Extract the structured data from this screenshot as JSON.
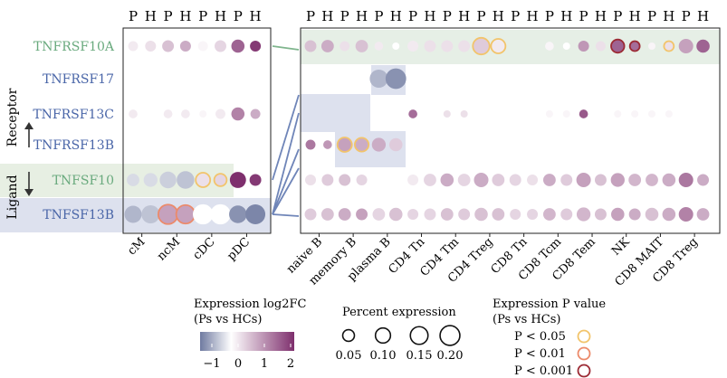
{
  "chart_data": {
    "type": "dot-plot",
    "column_pair_labels": [
      "P",
      "H"
    ],
    "genes": [
      "TNFRSF10A",
      "TNFRSF17",
      "TNFRSF13C",
      "TNFRSF13B",
      "TNFSF10",
      "TNFSF13B"
    ],
    "gene_colors": [
      "#6aaa7e",
      "#4a66a8",
      "#4a66a8",
      "#4a66a8",
      "#6aaa7e",
      "#4a66a8"
    ],
    "side_labels": {
      "receptor": "Receptor",
      "ligand": "Ligand"
    },
    "myeloid": {
      "cell_types": [
        "cM",
        "ncM",
        "cDC",
        "pDC"
      ],
      "values": [
        [
          [
            0.2,
            0.03,
            "none"
          ],
          [
            0.3,
            0.04,
            "none"
          ],
          [
            0.6,
            0.05,
            "none"
          ],
          [
            0.8,
            0.04,
            "none"
          ],
          [
            0.1,
            0.03,
            "none"
          ],
          [
            0.4,
            0.05,
            "none"
          ],
          [
            1.5,
            0.07,
            "none"
          ],
          [
            1.9,
            0.04,
            "none"
          ]
        ],
        [
          [
            0.0,
            0.01,
            "none"
          ],
          [
            0.0,
            0.01,
            "none"
          ],
          [
            0.0,
            0.01,
            "none"
          ],
          [
            0.0,
            0.01,
            "none"
          ],
          [
            0.0,
            0.01,
            "none"
          ],
          [
            0.0,
            0.01,
            "none"
          ],
          [
            0.0,
            0.01,
            "none"
          ],
          [
            0.0,
            0.01,
            "none"
          ]
        ],
        [
          [
            0.2,
            0.02,
            "none"
          ],
          [
            0.0,
            0.01,
            "none"
          ],
          [
            0.2,
            0.02,
            "none"
          ],
          [
            0.2,
            0.02,
            "none"
          ],
          [
            0.1,
            0.01,
            "none"
          ],
          [
            0.2,
            0.03,
            "none"
          ],
          [
            1.2,
            0.07,
            "none"
          ],
          [
            0.8,
            0.03,
            "none"
          ]
        ],
        [
          [
            0.0,
            0.0,
            "none"
          ],
          [
            0.0,
            0.0,
            "none"
          ],
          [
            0.0,
            0.0,
            "none"
          ],
          [
            0.0,
            0.0,
            "none"
          ],
          [
            0.0,
            0.0,
            "none"
          ],
          [
            0.0,
            0.0,
            "none"
          ],
          [
            0.0,
            0.0,
            "none"
          ],
          [
            0.0,
            0.0,
            "none"
          ]
        ],
        [
          [
            -0.3,
            0.06,
            "none"
          ],
          [
            -0.3,
            0.08,
            "none"
          ],
          [
            -0.4,
            0.13,
            "none"
          ],
          [
            -0.5,
            0.15,
            "none"
          ],
          [
            0.3,
            0.09,
            "p05"
          ],
          [
            0.4,
            0.06,
            "p05"
          ],
          [
            2.0,
            0.12,
            "none"
          ],
          [
            1.9,
            0.05,
            "none"
          ]
        ],
        [
          [
            -0.6,
            0.14,
            "none"
          ],
          [
            -0.5,
            0.16,
            "none"
          ],
          [
            0.9,
            0.19,
            "p01"
          ],
          [
            0.9,
            0.17,
            "p01"
          ],
          [
            0.0,
            0.21,
            "none"
          ],
          [
            0.0,
            0.21,
            "none"
          ],
          [
            -0.9,
            0.15,
            "none"
          ],
          [
            -1.0,
            0.2,
            "none"
          ]
        ]
      ]
    },
    "lymphoid": {
      "cell_types": [
        "naive B",
        "memory B",
        "plasma B",
        "CD4 Tn",
        "CD4 Tm",
        "CD4 Treg",
        "CD8 Tn",
        "CD8 Tcm",
        "CD8 Tem",
        "NK",
        "CD8 MAIT",
        "CD8 Treg"
      ],
      "values": [
        [
          [
            0.6,
            0.05,
            "none"
          ],
          [
            0.8,
            0.06,
            "none"
          ],
          [
            0.3,
            0.03,
            "none"
          ],
          [
            0.6,
            0.06,
            "none"
          ],
          [
            0.2,
            0.02,
            "none"
          ],
          [
            0.0,
            0.01,
            "none"
          ],
          [
            0.2,
            0.04,
            "none"
          ],
          [
            0.3,
            0.05,
            "none"
          ],
          [
            0.3,
            0.05,
            "none"
          ],
          [
            0.3,
            0.05,
            "none"
          ],
          [
            0.5,
            0.13,
            "p05"
          ],
          [
            0.2,
            0.09,
            "p05"
          ],
          [
            0.0,
            0.0,
            "none"
          ],
          [
            0.0,
            0.0,
            "none"
          ],
          [
            0.1,
            0.02,
            "none"
          ],
          [
            0.0,
            0.01,
            "none"
          ],
          [
            1.0,
            0.04,
            "none"
          ],
          [
            0.3,
            0.03,
            "none"
          ],
          [
            1.5,
            0.07,
            "p001"
          ],
          [
            1.4,
            0.03,
            "p001"
          ],
          [
            0.1,
            0.01,
            "none"
          ],
          [
            0.3,
            0.03,
            "p05"
          ],
          [
            0.9,
            0.09,
            "none"
          ],
          [
            1.5,
            0.07,
            "none"
          ]
        ],
        [
          [
            0.0,
            0.01,
            "none"
          ],
          [
            0.0,
            0.01,
            "none"
          ],
          [
            0.0,
            0.01,
            "none"
          ],
          [
            0.0,
            0.01,
            "none"
          ],
          [
            -0.6,
            0.16,
            "none"
          ],
          [
            -0.9,
            0.22,
            "none"
          ],
          [
            0.0,
            0.0,
            "none"
          ],
          [
            0.0,
            0.0,
            "none"
          ],
          [
            0.0,
            0.0,
            "none"
          ],
          [
            0.0,
            0.0,
            "none"
          ],
          [
            0.0,
            0.0,
            "none"
          ],
          [
            0.0,
            0.0,
            "none"
          ],
          [
            0.0,
            0.0,
            "none"
          ],
          [
            0.0,
            0.0,
            "none"
          ],
          [
            0.0,
            0.0,
            "none"
          ],
          [
            0.0,
            0.0,
            "none"
          ],
          [
            0.0,
            0.0,
            "none"
          ],
          [
            0.0,
            0.0,
            "none"
          ],
          [
            0.0,
            0.0,
            "none"
          ],
          [
            0.0,
            0.0,
            "none"
          ],
          [
            0.0,
            0.0,
            "none"
          ],
          [
            0.0,
            0.0,
            "none"
          ],
          [
            0.0,
            0.0,
            "none"
          ],
          [
            0.0,
            0.0,
            "none"
          ]
        ],
        [
          [
            0.0,
            0.0,
            "none"
          ],
          [
            0.0,
            0.0,
            "none"
          ],
          [
            0.0,
            0.0,
            "none"
          ],
          [
            0.0,
            0.0,
            "none"
          ],
          [
            0.0,
            0.0,
            "none"
          ],
          [
            0.0,
            0.0,
            "none"
          ],
          [
            1.4,
            0.02,
            "none"
          ],
          [
            0.0,
            0.0,
            "none"
          ],
          [
            0.3,
            0.01,
            "none"
          ],
          [
            0.3,
            0.01,
            "none"
          ],
          [
            0.0,
            0.0,
            "none"
          ],
          [
            0.0,
            0.0,
            "none"
          ],
          [
            0.0,
            0.0,
            "none"
          ],
          [
            0.0,
            0.0,
            "none"
          ],
          [
            0.1,
            0.01,
            "none"
          ],
          [
            0.1,
            0.01,
            "none"
          ],
          [
            1.6,
            0.02,
            "none"
          ],
          [
            0.0,
            0.0,
            "none"
          ],
          [
            0.1,
            0.01,
            "none"
          ],
          [
            0.1,
            0.01,
            "none"
          ],
          [
            0.1,
            0.01,
            "none"
          ],
          [
            0.1,
            0.01,
            "none"
          ],
          [
            0.0,
            0.0,
            "none"
          ],
          [
            0.0,
            0.0,
            "none"
          ]
        ],
        [
          [
            1.3,
            0.03,
            "none"
          ],
          [
            1.0,
            0.02,
            "none"
          ],
          [
            0.9,
            0.09,
            "p05"
          ],
          [
            0.8,
            0.08,
            "p05"
          ],
          [
            0.8,
            0.08,
            "none"
          ],
          [
            0.5,
            0.07,
            "none"
          ],
          [
            0.0,
            0.0,
            "none"
          ],
          [
            0.0,
            0.0,
            "none"
          ],
          [
            0.0,
            0.0,
            "none"
          ],
          [
            0.0,
            0.0,
            "none"
          ],
          [
            0.0,
            0.0,
            "none"
          ],
          [
            0.0,
            0.0,
            "none"
          ],
          [
            0.0,
            0.0,
            "none"
          ],
          [
            0.0,
            0.0,
            "none"
          ],
          [
            0.0,
            0.0,
            "none"
          ],
          [
            0.0,
            0.0,
            "none"
          ],
          [
            0.0,
            0.0,
            "none"
          ],
          [
            0.0,
            0.0,
            "none"
          ],
          [
            0.0,
            0.0,
            "none"
          ],
          [
            0.0,
            0.0,
            "none"
          ],
          [
            0.0,
            0.0,
            "none"
          ],
          [
            0.0,
            0.0,
            "none"
          ],
          [
            0.0,
            0.0,
            "none"
          ],
          [
            0.0,
            0.0,
            "none"
          ]
        ],
        [
          [
            0.3,
            0.04,
            "none"
          ],
          [
            0.5,
            0.05,
            "none"
          ],
          [
            0.6,
            0.05,
            "none"
          ],
          [
            0.4,
            0.04,
            "none"
          ],
          [
            0.0,
            0.0,
            "none"
          ],
          [
            0.0,
            0.0,
            "none"
          ],
          [
            0.2,
            0.04,
            "none"
          ],
          [
            0.4,
            0.06,
            "none"
          ],
          [
            0.8,
            0.07,
            "none"
          ],
          [
            0.4,
            0.06,
            "none"
          ],
          [
            0.8,
            0.09,
            "none"
          ],
          [
            0.5,
            0.06,
            "none"
          ],
          [
            0.4,
            0.05,
            "none"
          ],
          [
            0.3,
            0.04,
            "none"
          ],
          [
            0.8,
            0.06,
            "none"
          ],
          [
            0.5,
            0.05,
            "none"
          ],
          [
            0.9,
            0.09,
            "none"
          ],
          [
            0.6,
            0.05,
            "none"
          ],
          [
            0.9,
            0.08,
            "none"
          ],
          [
            0.7,
            0.06,
            "none"
          ],
          [
            0.7,
            0.06,
            "none"
          ],
          [
            0.8,
            0.07,
            "none"
          ],
          [
            1.3,
            0.09,
            "none"
          ],
          [
            0.8,
            0.05,
            "none"
          ]
        ],
        [
          [
            0.5,
            0.05,
            "none"
          ],
          [
            0.6,
            0.06,
            "none"
          ],
          [
            0.8,
            0.06,
            "none"
          ],
          [
            0.9,
            0.05,
            "none"
          ],
          [
            0.4,
            0.06,
            "none"
          ],
          [
            0.6,
            0.07,
            "none"
          ],
          [
            0.4,
            0.04,
            "none"
          ],
          [
            0.4,
            0.05,
            "none"
          ],
          [
            0.6,
            0.06,
            "none"
          ],
          [
            0.5,
            0.05,
            "none"
          ],
          [
            0.6,
            0.07,
            "none"
          ],
          [
            0.6,
            0.06,
            "none"
          ],
          [
            0.4,
            0.04,
            "none"
          ],
          [
            0.4,
            0.04,
            "none"
          ],
          [
            0.7,
            0.06,
            "none"
          ],
          [
            0.5,
            0.05,
            "none"
          ],
          [
            0.7,
            0.08,
            "none"
          ],
          [
            0.6,
            0.05,
            "none"
          ],
          [
            0.9,
            0.07,
            "none"
          ],
          [
            0.8,
            0.05,
            "none"
          ],
          [
            0.6,
            0.07,
            "none"
          ],
          [
            0.8,
            0.07,
            "none"
          ],
          [
            1.2,
            0.09,
            "none"
          ],
          [
            0.8,
            0.06,
            "none"
          ]
        ]
      ]
    },
    "color_legend": {
      "title_line1": "Expression log2FC",
      "title_line2": "(Ps vs HCs)",
      "ticks": [
        "−1",
        "0",
        "1",
        "2"
      ],
      "low_color": "#6f7aa0",
      "mid_color": "#ffffff",
      "high_color": "#7e2f6d"
    },
    "size_legend": {
      "title": "Percent expression",
      "values": [
        0.05,
        0.1,
        0.15,
        0.2
      ],
      "labels": [
        "0.05",
        "0.10",
        "0.15",
        "0.20"
      ]
    },
    "pvalue_legend": {
      "title_line1": "Expression P value",
      "title_line2": "(Ps vs HCs)",
      "items": [
        {
          "key": "p05",
          "label": "P < 0.05",
          "color": "#f2c46b"
        },
        {
          "key": "p01",
          "label": "P < 0.01",
          "color": "#ec8a6a"
        },
        {
          "key": "p001",
          "label": "P < 0.001",
          "color": "#9c2a34"
        }
      ]
    },
    "highlight_colors": {
      "receptor_green": "#e6efe6",
      "blue": "#dde1ee",
      "green_ligand": "#e7efe3"
    }
  }
}
